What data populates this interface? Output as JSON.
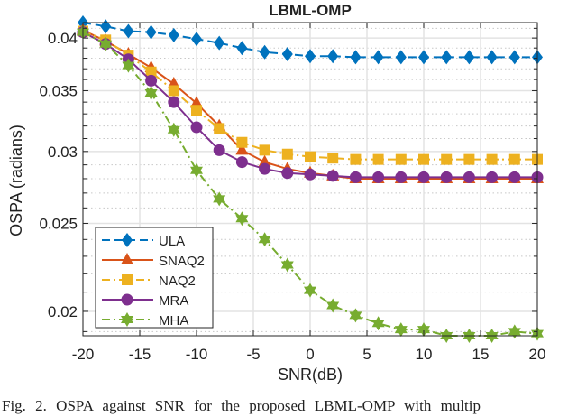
{
  "caption": "Fig. 2.  OSPA against SNR for the proposed LBML-OMP with multip",
  "chart_data": {
    "type": "line",
    "title": "LBML-OMP",
    "xlabel": "SNR(dB)",
    "ylabel": "OSPA (radians)",
    "xlim": [
      -20,
      20
    ],
    "ylim": [
      0.0188,
      0.0416
    ],
    "yscale": "log",
    "grid": true,
    "legend_position": "bottom-left",
    "xticks": [
      -20,
      -15,
      -10,
      -5,
      0,
      5,
      10,
      15,
      20
    ],
    "xtick_labels": [
      "-20",
      "-15",
      "-10",
      "-5",
      "0",
      "5",
      "10",
      "15",
      "20"
    ],
    "yticks": [
      0.02,
      0.025,
      0.03,
      0.035,
      0.04
    ],
    "ytick_labels": [
      "0.02",
      "0.025",
      "0.03",
      "0.035",
      "0.04"
    ],
    "x": [
      -20,
      -18,
      -16,
      -14,
      -12,
      -10,
      -8,
      -6,
      -4,
      -2,
      0,
      2,
      4,
      6,
      8,
      10,
      12,
      14,
      16,
      18,
      20
    ],
    "series": [
      {
        "name": "ULA",
        "color": "#0072BD",
        "marker": "diamond",
        "line": "dashed",
        "values": [
          0.0416,
          0.0412,
          0.0407,
          0.0406,
          0.0403,
          0.0399,
          0.0395,
          0.039,
          0.0386,
          0.0384,
          0.0382,
          0.0382,
          0.0381,
          0.0381,
          0.0381,
          0.0381,
          0.0381,
          0.0381,
          0.0381,
          0.0381,
          0.0381
        ]
      },
      {
        "name": "SNAQ2",
        "color": "#D95319",
        "marker": "triangle",
        "line": "solid",
        "values": [
          0.0408,
          0.0397,
          0.0384,
          0.0371,
          0.0356,
          0.0339,
          0.032,
          0.0301,
          0.0292,
          0.0287,
          0.0284,
          0.0282,
          0.028,
          0.028,
          0.028,
          0.028,
          0.028,
          0.028,
          0.028,
          0.028,
          0.028
        ]
      },
      {
        "name": "NAQ2",
        "color": "#EDB120",
        "marker": "square",
        "line": "dashdot",
        "values": [
          0.0407,
          0.0398,
          0.0383,
          0.0367,
          0.035,
          0.0333,
          0.0318,
          0.0307,
          0.0301,
          0.0298,
          0.0296,
          0.0295,
          0.0294,
          0.0294,
          0.0294,
          0.0294,
          0.0294,
          0.0294,
          0.0294,
          0.0294,
          0.0294
        ]
      },
      {
        "name": "MRA",
        "color": "#7E2F8E",
        "marker": "circle",
        "line": "solid",
        "values": [
          0.0406,
          0.0394,
          0.0379,
          0.0359,
          0.034,
          0.0319,
          0.0301,
          0.0292,
          0.0287,
          0.0284,
          0.0283,
          0.0282,
          0.0281,
          0.0281,
          0.0281,
          0.0281,
          0.0281,
          0.0281,
          0.0281,
          0.0281,
          0.0281
        ]
      },
      {
        "name": "MHA",
        "color": "#77AC30",
        "marker": "hexagram",
        "line": "dashdot",
        "values": [
          0.0406,
          0.0394,
          0.0373,
          0.0348,
          0.0317,
          0.0286,
          0.0266,
          0.0253,
          0.024,
          0.0225,
          0.0211,
          0.0203,
          0.0198,
          0.0194,
          0.0191,
          0.0191,
          0.0188,
          0.0188,
          0.0188,
          0.019,
          0.0189
        ]
      }
    ]
  }
}
